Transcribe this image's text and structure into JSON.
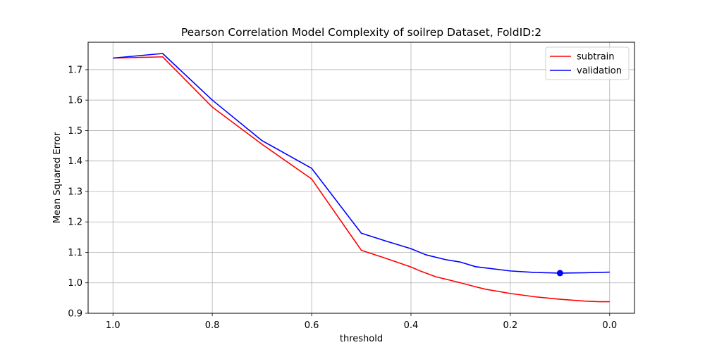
{
  "chart_data": {
    "type": "line",
    "title": "Pearson Correlation Model Complexity of soilrep Dataset, FoldID:2",
    "xlabel": "threshold",
    "ylabel": "Mean Squared Error",
    "xlim": [
      1.05,
      -0.05
    ],
    "ylim": [
      0.9,
      1.79
    ],
    "x_inverted": true,
    "grid": true,
    "legend_position": "top-right",
    "xticks": [
      1.0,
      0.8,
      0.6,
      0.4,
      0.2,
      0.0
    ],
    "xtick_labels": [
      "1.0",
      "0.8",
      "0.6",
      "0.4",
      "0.2",
      "0.0"
    ],
    "yticks": [
      0.9,
      1.0,
      1.1,
      1.2,
      1.3,
      1.4,
      1.5,
      1.6,
      1.7
    ],
    "ytick_labels": [
      "0.9",
      "1.0",
      "1.1",
      "1.2",
      "1.3",
      "1.4",
      "1.5",
      "1.6",
      "1.7"
    ],
    "series": [
      {
        "name": "subtrain",
        "color": "#ff0000",
        "points": [
          [
            1.0,
            1.738
          ],
          [
            0.9,
            1.742
          ],
          [
            0.8,
            1.577
          ],
          [
            0.7,
            1.455
          ],
          [
            0.6,
            1.341
          ],
          [
            0.5,
            1.107
          ],
          [
            0.45,
            1.08
          ],
          [
            0.4,
            1.052
          ],
          [
            0.38,
            1.038
          ],
          [
            0.35,
            1.02
          ],
          [
            0.3,
            1.0
          ],
          [
            0.27,
            0.987
          ],
          [
            0.25,
            0.979
          ],
          [
            0.2,
            0.965
          ],
          [
            0.15,
            0.954
          ],
          [
            0.1,
            0.946
          ],
          [
            0.05,
            0.94
          ],
          [
            0.02,
            0.938
          ],
          [
            0.0,
            0.938
          ]
        ]
      },
      {
        "name": "validation",
        "color": "#0000ff",
        "points": [
          [
            1.0,
            1.738
          ],
          [
            0.9,
            1.753
          ],
          [
            0.8,
            1.6
          ],
          [
            0.7,
            1.467
          ],
          [
            0.6,
            1.376
          ],
          [
            0.5,
            1.163
          ],
          [
            0.45,
            1.137
          ],
          [
            0.4,
            1.112
          ],
          [
            0.37,
            1.092
          ],
          [
            0.33,
            1.076
          ],
          [
            0.3,
            1.068
          ],
          [
            0.27,
            1.053
          ],
          [
            0.25,
            1.049
          ],
          [
            0.2,
            1.039
          ],
          [
            0.15,
            1.034
          ],
          [
            0.1,
            1.032
          ],
          [
            0.05,
            1.033
          ],
          [
            0.0,
            1.035
          ]
        ]
      }
    ],
    "markers": [
      {
        "series": "validation",
        "x": 0.1,
        "y": 1.032,
        "color": "#0000ff"
      }
    ]
  }
}
